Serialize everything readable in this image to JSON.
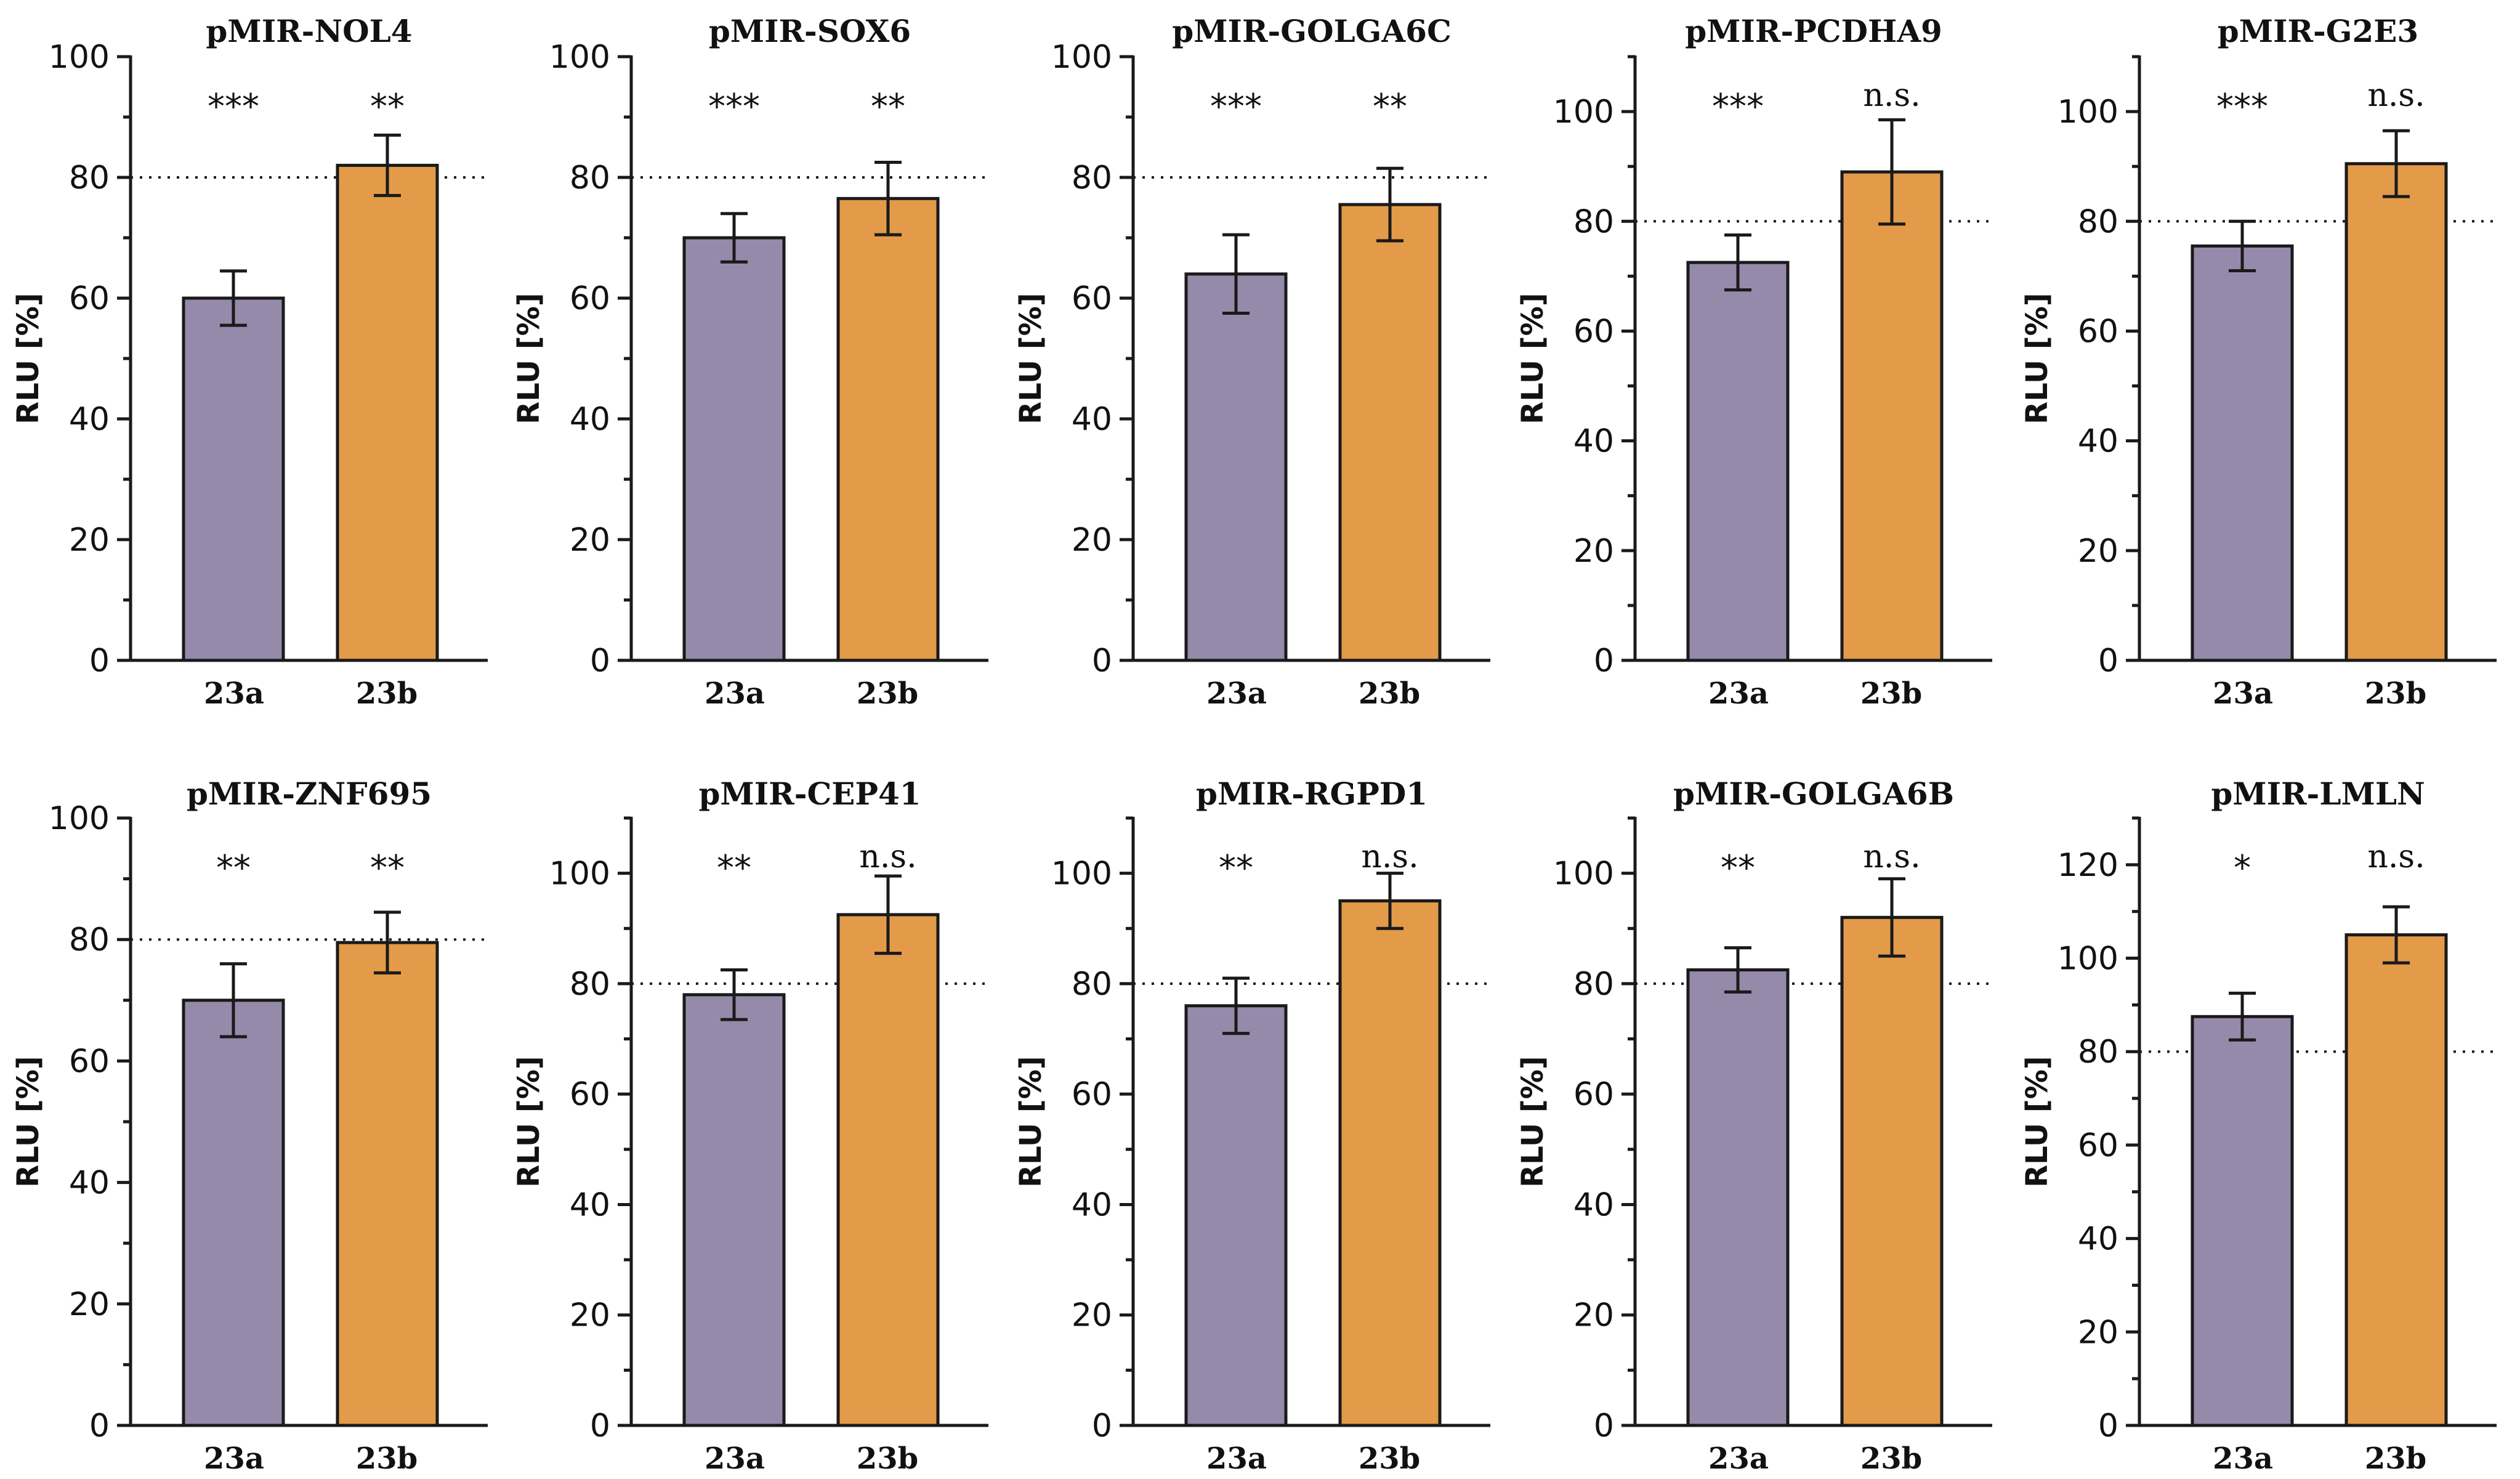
{
  "colors": {
    "bar_23a": "#968aab",
    "bar_23b": "#e39a49",
    "axis": "#1a1a1a"
  },
  "chart_data": [
    {
      "type": "bar",
      "title": "pMIR-NOL4",
      "ylabel": "RLU [%]",
      "ylim": [
        0,
        100
      ],
      "yticks": [
        0,
        20,
        40,
        60,
        80,
        100
      ],
      "reference_line": 80,
      "categories": [
        "23a",
        "23b"
      ],
      "values": [
        60,
        82
      ],
      "errors": [
        4.5,
        5
      ],
      "significance": [
        "***",
        "**"
      ]
    },
    {
      "type": "bar",
      "title": "pMIR-SOX6",
      "ylabel": "RLU [%]",
      "ylim": [
        0,
        100
      ],
      "yticks": [
        0,
        20,
        40,
        60,
        80,
        100
      ],
      "reference_line": 80,
      "categories": [
        "23a",
        "23b"
      ],
      "values": [
        70,
        76.5
      ],
      "errors": [
        4,
        6
      ],
      "significance": [
        "***",
        "**"
      ]
    },
    {
      "type": "bar",
      "title": "pMIR-GOLGA6C",
      "ylabel": "RLU [%]",
      "ylim": [
        0,
        100
      ],
      "yticks": [
        0,
        20,
        40,
        60,
        80,
        100
      ],
      "reference_line": 80,
      "categories": [
        "23a",
        "23b"
      ],
      "values": [
        64,
        75.5
      ],
      "errors": [
        6.5,
        6
      ],
      "significance": [
        "***",
        "**"
      ]
    },
    {
      "type": "bar",
      "title": "pMIR-PCDHA9",
      "ylabel": "RLU [%]",
      "ylim": [
        0,
        110
      ],
      "yticks": [
        0,
        20,
        40,
        60,
        80,
        100
      ],
      "reference_line": 80,
      "categories": [
        "23a",
        "23b"
      ],
      "values": [
        72.5,
        89
      ],
      "errors": [
        5,
        9.5
      ],
      "significance": [
        "***",
        "n.s."
      ]
    },
    {
      "type": "bar",
      "title": "pMIR-G2E3",
      "ylabel": "RLU [%]",
      "ylim": [
        0,
        110
      ],
      "yticks": [
        0,
        20,
        40,
        60,
        80,
        100
      ],
      "reference_line": 80,
      "categories": [
        "23a",
        "23b"
      ],
      "values": [
        75.5,
        90.5
      ],
      "errors": [
        4.5,
        6
      ],
      "significance": [
        "***",
        "n.s."
      ]
    },
    {
      "type": "bar",
      "title": "pMIR-ZNF695",
      "ylabel": "RLU [%]",
      "ylim": [
        0,
        100
      ],
      "yticks": [
        0,
        20,
        40,
        60,
        80,
        100
      ],
      "reference_line": 80,
      "categories": [
        "23a",
        "23b"
      ],
      "values": [
        70,
        79.5
      ],
      "errors": [
        6,
        5
      ],
      "significance": [
        "**",
        "**"
      ]
    },
    {
      "type": "bar",
      "title": "pMIR-CEP41",
      "ylabel": "RLU [%]",
      "ylim": [
        0,
        110
      ],
      "yticks": [
        0,
        20,
        40,
        60,
        80,
        100
      ],
      "reference_line": 80,
      "categories": [
        "23a",
        "23b"
      ],
      "values": [
        78,
        92.5
      ],
      "errors": [
        4.5,
        7
      ],
      "significance": [
        "**",
        "n.s."
      ]
    },
    {
      "type": "bar",
      "title": "pMIR-RGPD1",
      "ylabel": "RLU [%]",
      "ylim": [
        0,
        110
      ],
      "yticks": [
        0,
        20,
        40,
        60,
        80,
        100
      ],
      "reference_line": 80,
      "categories": [
        "23a",
        "23b"
      ],
      "values": [
        76,
        95
      ],
      "errors": [
        5,
        5
      ],
      "significance": [
        "**",
        "n.s."
      ]
    },
    {
      "type": "bar",
      "title": "pMIR-GOLGA6B",
      "ylabel": "RLU [%]",
      "ylim": [
        0,
        110
      ],
      "yticks": [
        0,
        20,
        40,
        60,
        80,
        100
      ],
      "reference_line": 80,
      "categories": [
        "23a",
        "23b"
      ],
      "values": [
        82.5,
        92
      ],
      "errors": [
        4,
        7
      ],
      "significance": [
        "**",
        "n.s."
      ]
    },
    {
      "type": "bar",
      "title": "pMIR-LMLN",
      "ylabel": "RLU [%]",
      "ylim": [
        0,
        130
      ],
      "yticks": [
        0,
        20,
        40,
        60,
        80,
        100,
        120
      ],
      "reference_line": 80,
      "categories": [
        "23a",
        "23b"
      ],
      "values": [
        87.5,
        105
      ],
      "errors": [
        5,
        6
      ],
      "significance": [
        "*",
        "n.s."
      ]
    }
  ]
}
